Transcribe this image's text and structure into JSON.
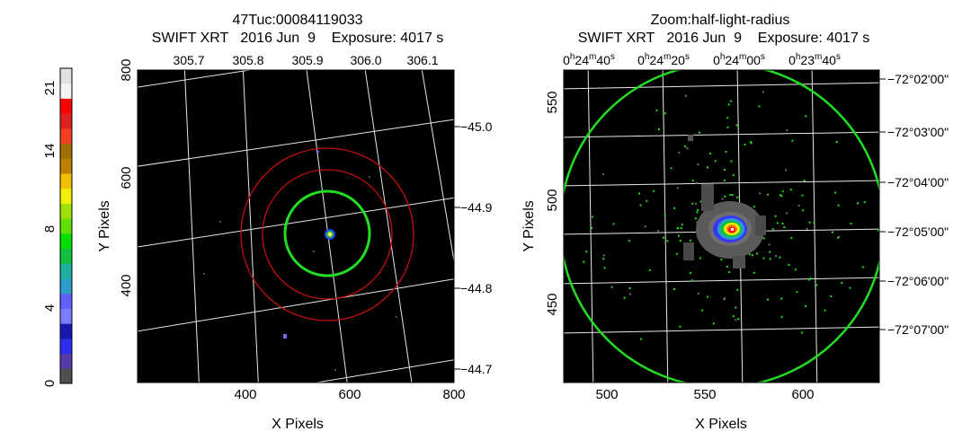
{
  "colorbar": {
    "labels": [
      "0",
      "4",
      "8",
      "14",
      "21"
    ],
    "colors": [
      "#505050",
      "#5a3aa8",
      "#2d2df0",
      "#1818b0",
      "#7b7bff",
      "#6060ff",
      "#2aa0c8",
      "#20b0a0",
      "#10c040",
      "#00e000",
      "#60e000",
      "#a0e000",
      "#f0f000",
      "#f0c000",
      "#c08000",
      "#a07000",
      "#f04020",
      "#e02020",
      "#ff0000",
      "#f4f4f4",
      "#e0e0e0"
    ]
  },
  "left": {
    "title1": "47Tuc:00084119033",
    "title2": "SWIFT XRT   2016 Jun  9    Exposure: 4017 s",
    "xlabel": "X Pixels",
    "ylabel": "Y Pixels",
    "xticks": [
      "400",
      "600",
      "800"
    ],
    "yticks": [
      "400",
      "600",
      "800"
    ],
    "top_ticks": [
      "305.7",
      "305.8",
      "305.9",
      "306.0",
      "306.1"
    ],
    "right_ticks": [
      "−45.0",
      "−44.9",
      "−44.8",
      "−44.7"
    ]
  },
  "right": {
    "title1": "Zoom:half-light-radius",
    "title2": "SWIFT XRT   2016 Jun  9    Exposure: 4017 s",
    "xlabel": "X Pixels",
    "ylabel": "Y Pixels",
    "xticks": [
      "500",
      "550",
      "600"
    ],
    "yticks": [
      "450",
      "500",
      "550"
    ],
    "top_ticks": [
      "0h24m40s",
      "0h24m20s",
      "0h24m00s",
      "0h23m40s"
    ],
    "right_ticks": [
      "−72°02ʹ00ʺ",
      "−72°03ʹ00ʺ",
      "−72°04ʹ00ʺ",
      "−72°05ʹ00ʺ",
      "−72°06ʹ00ʺ",
      "−72°07ʹ00ʺ"
    ]
  }
}
